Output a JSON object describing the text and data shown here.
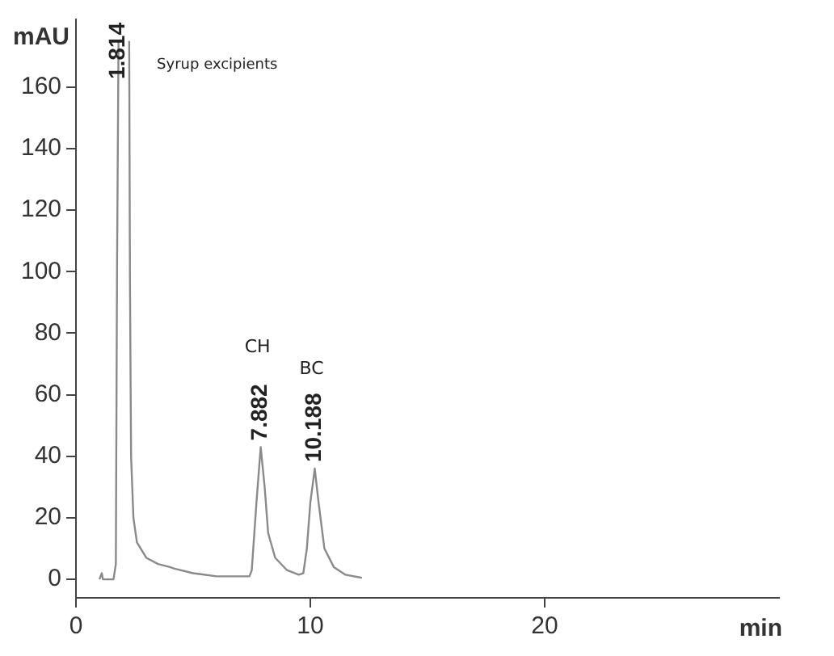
{
  "chart_data": {
    "type": "line",
    "xlabel": "min",
    "ylabel": "mAU",
    "xlim": [
      0,
      30
    ],
    "ylim": [
      -6,
      182
    ],
    "xticks": [
      0,
      10,
      20
    ],
    "yticks": [
      0,
      20,
      40,
      60,
      80,
      100,
      120,
      140,
      160
    ],
    "marker": "none",
    "line_style": "solid",
    "series": [
      {
        "color": "#8a8a8a",
        "x": [
          1.0,
          1.1,
          1.15,
          1.2,
          1.6,
          1.7,
          1.75,
          1.814,
          2.0,
          2.27,
          2.3,
          2.35,
          2.45,
          2.6,
          3,
          3.5,
          4,
          4.2,
          5,
          6,
          7,
          7.4,
          7.5,
          7.7,
          7.882,
          8.05,
          8.2,
          8.5,
          9,
          9.5,
          9.7,
          9.85,
          10.0,
          10.188,
          10.35,
          10.6,
          11,
          11.5,
          12.2
        ],
        "values": [
          0,
          2,
          0,
          0,
          0,
          5,
          100,
          175,
          null,
          175,
          100,
          40,
          20,
          12,
          7,
          5,
          4,
          3.5,
          2,
          1,
          1,
          1,
          3,
          25,
          43,
          30,
          15,
          7,
          3,
          1.5,
          2,
          10,
          25,
          36,
          25,
          10,
          4,
          1.5,
          0.5
        ]
      }
    ],
    "annotations": [
      {
        "text": "1.814",
        "x": 1.814,
        "y": 175
      },
      "Syrup excipients",
      "CH",
      {
        "text": "7.882",
        "x": 7.882,
        "y": 43
      },
      "BC",
      {
        "text": "10.188",
        "x": 10.188,
        "y": 36
      }
    ]
  }
}
